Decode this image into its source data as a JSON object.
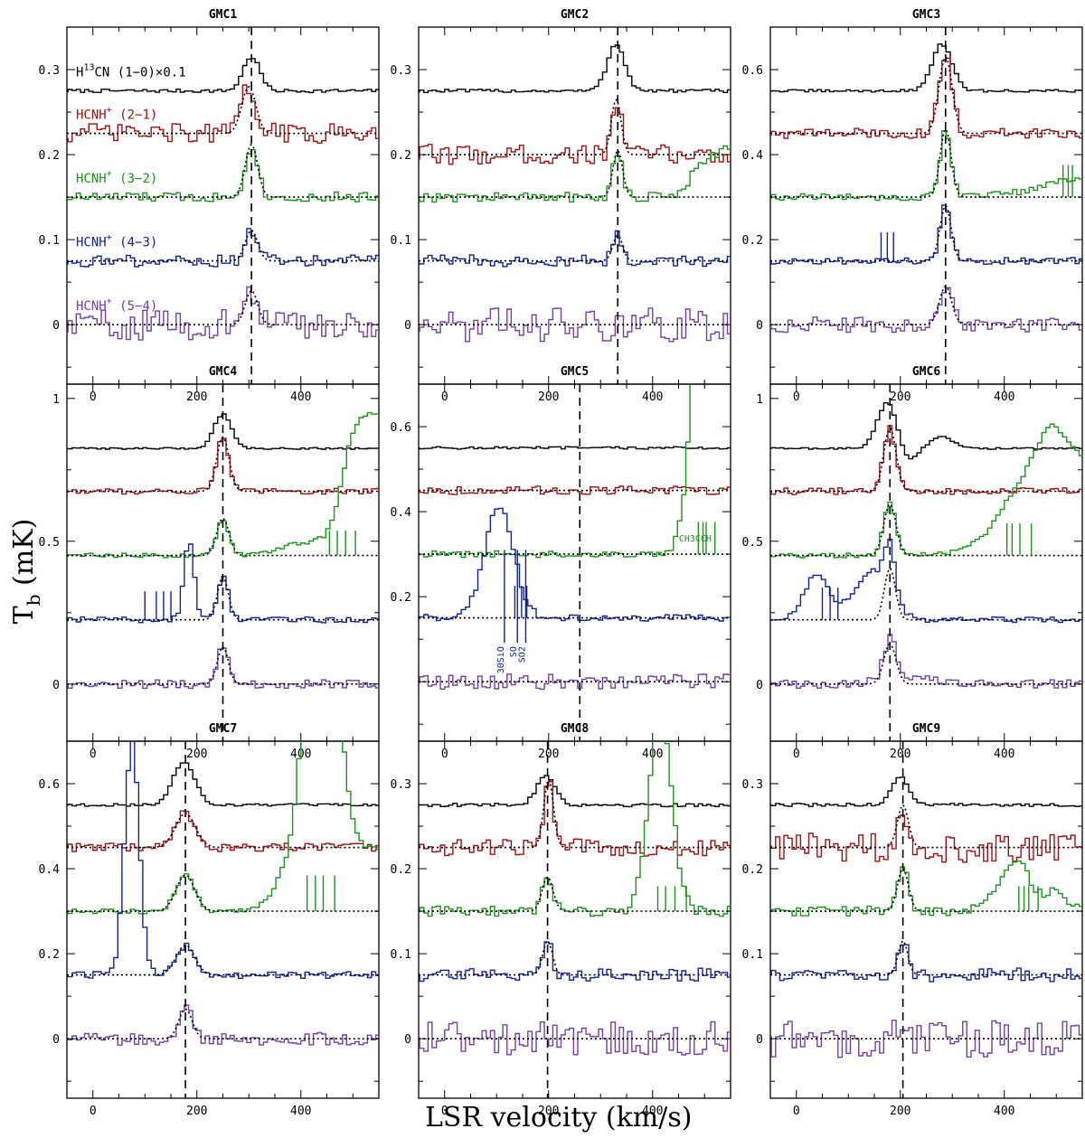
{
  "colors": {
    "h13cn": "#000000",
    "hcnh21": "#a01010",
    "hcnh32": "#199519",
    "hcnh43": "#10239a",
    "hcnh54": "#7040a8"
  },
  "axes": {
    "xlabel": "LSR velocity (km/s)",
    "ylabel_main": "T",
    "ylabel_sub": "b",
    "ylabel_unit": " (mK)",
    "xlim": [
      -50,
      550
    ],
    "xticks": [
      0,
      200,
      400
    ]
  },
  "legend": {
    "h13cn": {
      "main": "H",
      "sup": "13",
      "rest": "CN (1−0)×0.1"
    },
    "hcnh21": {
      "main": "HCNH",
      "sup": "+",
      "rest": " (2−1)"
    },
    "hcnh32": {
      "main": "HCNH",
      "sup": "+",
      "rest": " (3−2)"
    },
    "hcnh43": {
      "main": "HCNH",
      "sup": "+",
      "rest": " (4−3)"
    },
    "hcnh54": {
      "main": "HCNH",
      "sup": "+",
      "rest": " (5−4)"
    }
  },
  "annotations": {
    "gmc5_ch3cch": "CH3CCH",
    "gmc5_30sio": "30SiO",
    "gmc5_so": "SO",
    "gmc5_so2": "SO2"
  },
  "chart_data": [
    {
      "type": "line",
      "title": "GMC1",
      "ylim": [
        -0.07,
        0.35
      ],
      "yticks": [
        0,
        0.1,
        0.2,
        0.3
      ],
      "vline": 305,
      "series": [
        {
          "key": "h13cn",
          "offset": 0.275,
          "amp": 0.04,
          "center": 305,
          "width": 38,
          "noise": 0.002
        },
        {
          "key": "hcnh21",
          "offset": 0.225,
          "amp": 0.055,
          "center": 300,
          "width": 32,
          "noise": 0.012
        },
        {
          "key": "hcnh32",
          "offset": 0.15,
          "amp": 0.062,
          "center": 305,
          "width": 28,
          "noise": 0.006
        },
        {
          "key": "hcnh43",
          "offset": 0.075,
          "amp": 0.036,
          "center": 305,
          "width": 28,
          "noise": 0.007
        },
        {
          "key": "hcnh54",
          "offset": 0,
          "amp": 0.04,
          "center": 305,
          "width": 28,
          "noise": 0.018
        }
      ]
    },
    {
      "type": "line",
      "title": "GMC2",
      "ylim": [
        -0.07,
        0.35
      ],
      "yticks": [
        0,
        0.1,
        0.2,
        0.3
      ],
      "vline": 333,
      "series": [
        {
          "key": "h13cn",
          "offset": 0.275,
          "amp": 0.055,
          "center": 330,
          "width": 40,
          "noise": 0.002
        },
        {
          "key": "hcnh21",
          "offset": 0.2,
          "amp": 0.065,
          "center": 330,
          "width": 22,
          "noise": 0.012
        },
        {
          "key": "hcnh32",
          "offset": 0.15,
          "amp": 0.055,
          "center": 333,
          "width": 22,
          "noise": 0.006
        },
        {
          "key": "hcnh43",
          "offset": 0.075,
          "amp": 0.03,
          "center": 333,
          "width": 22,
          "noise": 0.007
        },
        {
          "key": "hcnh54",
          "offset": 0,
          "amp": 0,
          "center": 333,
          "width": 22,
          "noise": 0.02
        }
      ]
    },
    {
      "type": "line",
      "title": "GMC3",
      "ylim": [
        -0.14,
        0.7
      ],
      "yticks": [
        0,
        0.2,
        0.4,
        0.6
      ],
      "vline": 287,
      "series": [
        {
          "key": "h13cn",
          "offset": 0.55,
          "amp": 0.11,
          "center": 280,
          "width": 45,
          "noise": 0.003
        },
        {
          "key": "hcnh21",
          "offset": 0.45,
          "amp": 0.18,
          "center": 287,
          "width": 30,
          "noise": 0.012
        },
        {
          "key": "hcnh32",
          "offset": 0.3,
          "amp": 0.16,
          "center": 287,
          "width": 25,
          "noise": 0.008
        },
        {
          "key": "hcnh43",
          "offset": 0.15,
          "amp": 0.13,
          "center": 287,
          "width": 25,
          "noise": 0.008
        },
        {
          "key": "hcnh54",
          "offset": 0,
          "amp": 0.09,
          "center": 287,
          "width": 28,
          "noise": 0.018
        }
      ]
    },
    {
      "type": "line",
      "title": "GMC4",
      "ylim": [
        -0.2,
        1.05
      ],
      "yticks": [
        0,
        0.5,
        1
      ],
      "vline": 250,
      "series": [
        {
          "key": "h13cn",
          "offset": 0.825,
          "amp": 0.12,
          "center": 250,
          "width": 40,
          "noise": 0.003
        },
        {
          "key": "hcnh21",
          "offset": 0.675,
          "amp": 0.19,
          "center": 250,
          "width": 28,
          "noise": 0.01
        },
        {
          "key": "hcnh32",
          "offset": 0.45,
          "amp": 0.13,
          "center": 250,
          "width": 28,
          "noise": 0.008
        },
        {
          "key": "hcnh43",
          "offset": 0.225,
          "amp": 0.15,
          "center": 250,
          "width": 25,
          "noise": 0.01
        },
        {
          "key": "hcnh54",
          "offset": 0,
          "amp": 0.13,
          "center": 250,
          "width": 25,
          "noise": 0.015
        }
      ]
    },
    {
      "type": "line",
      "title": "GMC5",
      "ylim": [
        -0.14,
        0.7
      ],
      "yticks": [
        0.2,
        0.4,
        0.6
      ],
      "vline": 260,
      "series": [
        {
          "key": "h13cn",
          "offset": 0.55,
          "amp": 0,
          "center": 260,
          "width": 30,
          "noise": 0.003
        },
        {
          "key": "hcnh21",
          "offset": 0.45,
          "amp": 0,
          "center": 260,
          "width": 30,
          "noise": 0.01
        },
        {
          "key": "hcnh32",
          "offset": 0.3,
          "amp": 0,
          "center": 260,
          "width": 30,
          "noise": 0.008
        },
        {
          "key": "hcnh43",
          "offset": 0.15,
          "amp": 0,
          "center": 260,
          "width": 30,
          "noise": 0.008
        },
        {
          "key": "hcnh54",
          "offset": 0,
          "amp": 0,
          "center": 260,
          "width": 30,
          "noise": 0.018
        }
      ]
    },
    {
      "type": "line",
      "title": "GMC6",
      "ylim": [
        -0.2,
        1.05
      ],
      "yticks": [
        0,
        0.5,
        1
      ],
      "vline": 180,
      "series": [
        {
          "key": "h13cn",
          "offset": 0.825,
          "amp": 0.16,
          "center": 175,
          "width": 45,
          "noise": 0.003
        },
        {
          "key": "hcnh21",
          "offset": 0.675,
          "amp": 0.22,
          "center": 180,
          "width": 28,
          "noise": 0.012
        },
        {
          "key": "hcnh32",
          "offset": 0.45,
          "amp": 0.18,
          "center": 180,
          "width": 28,
          "noise": 0.008
        },
        {
          "key": "hcnh43",
          "offset": 0.225,
          "amp": 0.18,
          "center": 180,
          "width": 25,
          "noise": 0.01
        },
        {
          "key": "hcnh54",
          "offset": 0,
          "amp": 0.14,
          "center": 180,
          "width": 28,
          "noise": 0.015
        }
      ]
    },
    {
      "type": "line",
      "title": "GMC7",
      "ylim": [
        -0.14,
        0.7
      ],
      "yticks": [
        0,
        0.2,
        0.4,
        0.6
      ],
      "vline": 178,
      "series": [
        {
          "key": "h13cn",
          "offset": 0.55,
          "amp": 0.1,
          "center": 175,
          "width": 50,
          "noise": 0.003
        },
        {
          "key": "hcnh21",
          "offset": 0.45,
          "amp": 0.08,
          "center": 178,
          "width": 45,
          "noise": 0.01
        },
        {
          "key": "hcnh32",
          "offset": 0.3,
          "amp": 0.085,
          "center": 178,
          "width": 42,
          "noise": 0.006
        },
        {
          "key": "hcnh43",
          "offset": 0.15,
          "amp": 0.07,
          "center": 178,
          "width": 42,
          "noise": 0.008
        },
        {
          "key": "hcnh54",
          "offset": 0,
          "amp": 0.07,
          "center": 178,
          "width": 30,
          "noise": 0.015
        }
      ]
    },
    {
      "type": "line",
      "title": "GMC8",
      "ylim": [
        -0.07,
        0.35
      ],
      "yticks": [
        0,
        0.1,
        0.2,
        0.3
      ],
      "vline": 198,
      "series": [
        {
          "key": "h13cn",
          "offset": 0.275,
          "amp": 0.035,
          "center": 195,
          "width": 42,
          "noise": 0.002
        },
        {
          "key": "hcnh21",
          "offset": 0.225,
          "amp": 0.08,
          "center": 200,
          "width": 22,
          "noise": 0.01
        },
        {
          "key": "hcnh32",
          "offset": 0.15,
          "amp": 0.04,
          "center": 198,
          "width": 25,
          "noise": 0.006
        },
        {
          "key": "hcnh43",
          "offset": 0.075,
          "amp": 0.04,
          "center": 198,
          "width": 22,
          "noise": 0.008
        },
        {
          "key": "hcnh54",
          "offset": 0,
          "amp": 0,
          "center": 198,
          "width": 22,
          "noise": 0.02
        }
      ]
    },
    {
      "type": "line",
      "title": "GMC9",
      "ylim": [
        -0.07,
        0.35
      ],
      "yticks": [
        0,
        0.1,
        0.2,
        0.3
      ],
      "vline": 205,
      "series": [
        {
          "key": "h13cn",
          "offset": 0.275,
          "amp": 0.033,
          "center": 200,
          "width": 40,
          "noise": 0.002
        },
        {
          "key": "hcnh21",
          "offset": 0.225,
          "amp": 0.05,
          "center": 205,
          "width": 25,
          "noise": 0.018
        },
        {
          "key": "hcnh32",
          "offset": 0.15,
          "amp": 0.05,
          "center": 205,
          "width": 25,
          "noise": 0.006
        },
        {
          "key": "hcnh43",
          "offset": 0.075,
          "amp": 0.04,
          "center": 205,
          "width": 22,
          "noise": 0.008
        },
        {
          "key": "hcnh54",
          "offset": 0,
          "amp": 0,
          "center": 205,
          "width": 22,
          "noise": 0.022
        }
      ]
    }
  ]
}
